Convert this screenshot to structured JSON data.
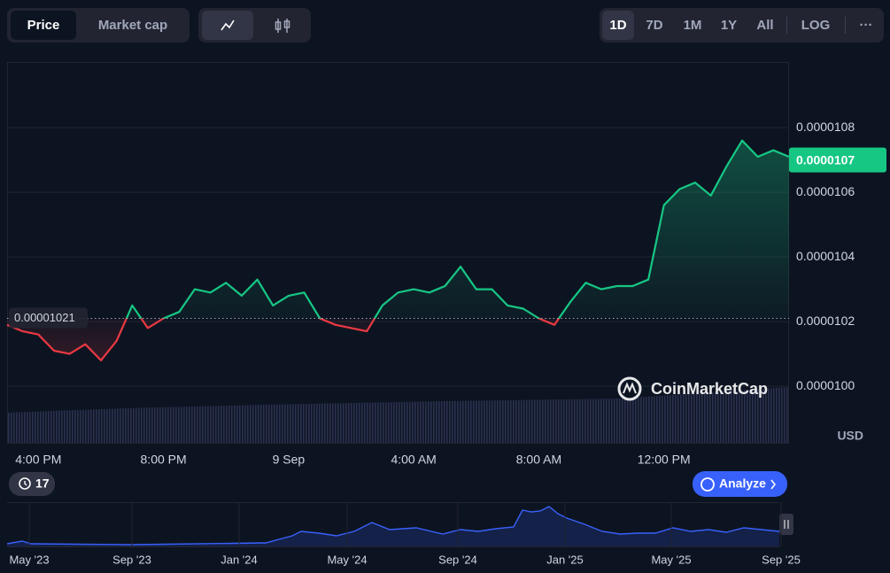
{
  "toolbar": {
    "price": "Price",
    "market_cap": "Market cap",
    "ranges": [
      "1D",
      "7D",
      "1M",
      "1Y",
      "All"
    ],
    "log": "LOG",
    "more": "···"
  },
  "chart_data": {
    "type": "line",
    "categories": [
      null,
      null,
      "4:00 PM",
      null,
      null,
      null,
      null,
      null,
      null,
      null,
      "8:00 PM",
      null,
      null,
      null,
      null,
      null,
      null,
      null,
      "9 Sep",
      null,
      null,
      null,
      null,
      null,
      null,
      null,
      "4:00 AM",
      null,
      null,
      null,
      null,
      null,
      null,
      null,
      "8:00 AM",
      null,
      null,
      null,
      null,
      null,
      null,
      null,
      "12:00 PM",
      null,
      null,
      null,
      null,
      null,
      null,
      null,
      null
    ],
    "values": [
      1.019e-05,
      1.017e-05,
      1.016e-05,
      1.011e-05,
      1.01e-05,
      1.013e-05,
      1.008e-05,
      1.014e-05,
      1.025e-05,
      1.018e-05,
      1.021e-05,
      1.023e-05,
      1.03e-05,
      1.029e-05,
      1.032e-05,
      1.028e-05,
      1.033e-05,
      1.025e-05,
      1.028e-05,
      1.029e-05,
      1.021e-05,
      1.019e-05,
      1.018e-05,
      1.017e-05,
      1.025e-05,
      1.029e-05,
      1.03e-05,
      1.029e-05,
      1.031e-05,
      1.037e-05,
      1.03e-05,
      1.03e-05,
      1.025e-05,
      1.024e-05,
      1.021e-05,
      1.019e-05,
      1.026e-05,
      1.032e-05,
      1.03e-05,
      1.031e-05,
      1.031e-05,
      1.033e-05,
      1.056e-05,
      1.061e-05,
      1.063e-05,
      1.059e-05,
      1.068e-05,
      1.076e-05,
      1.071e-05,
      1.073e-05,
      1.071e-05
    ],
    "up_color": "#16c784",
    "down_color": "#ea3943",
    "baseline": 1.021e-05,
    "last_price": 1.07e-05,
    "ylim": [
      9.825e-06,
      1.1003e-05
    ],
    "yticks": [
      {
        "value": 1e-05,
        "label": "0.0000100"
      },
      1.02e-05,
      1.04e-05,
      1.06e-05,
      1.08e-05
    ],
    "grid": true,
    "currency": "USD",
    "watermark": "CoinMarketCap"
  },
  "history_badge": "17",
  "analyze": "Analyze",
  "navigator": {
    "labels": [
      "May '23",
      "Sep '23",
      "Jan '24",
      "May '24",
      "Sep '24",
      "Jan '25",
      "May '25",
      "Sep '25"
    ]
  }
}
